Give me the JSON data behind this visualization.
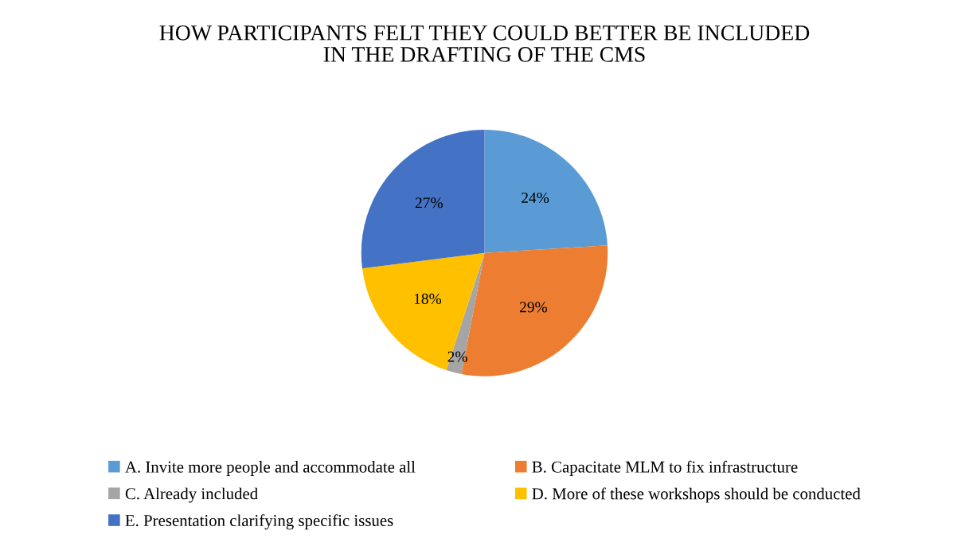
{
  "chart_data": {
    "type": "pie",
    "title": "HOW PARTICIPANTS FELT THEY COULD BETTER BE INCLUDED\nIN THE DRAFTING OF THE CMS",
    "categories": [
      "A. Invite more people and accommodate all",
      "B. Capacitate MLM to fix infrastructure",
      "C. Already included",
      "D. More of these workshops should be conducted",
      "E. Presentation clarifying specific issues"
    ],
    "values": [
      24,
      29,
      2,
      18,
      27
    ],
    "colors": [
      "#5b9bd5",
      "#ed7d31",
      "#a5a5a5",
      "#ffc000",
      "#4472c4"
    ],
    "value_labels": [
      "24%",
      "29%",
      "2%",
      "18%",
      "27%"
    ],
    "legend": "bottom"
  }
}
